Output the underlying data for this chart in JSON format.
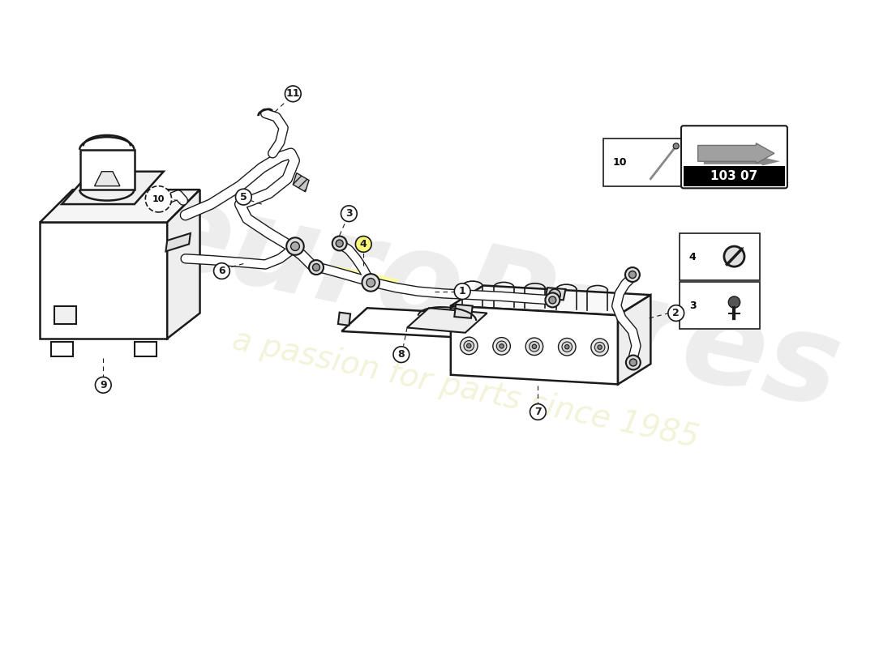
{
  "bg_color": "#ffffff",
  "line_color": "#1a1a1a",
  "watermark1": "euroPares",
  "watermark2": "a passion for parts since 1985",
  "catalog_code": "103 07",
  "wm_color1": "#d8d8d8",
  "wm_color2": "#f0f0d0",
  "label_font": 9,
  "lw_hose": 4.0,
  "lw_thin": 1.5,
  "lw_part": 1.8
}
